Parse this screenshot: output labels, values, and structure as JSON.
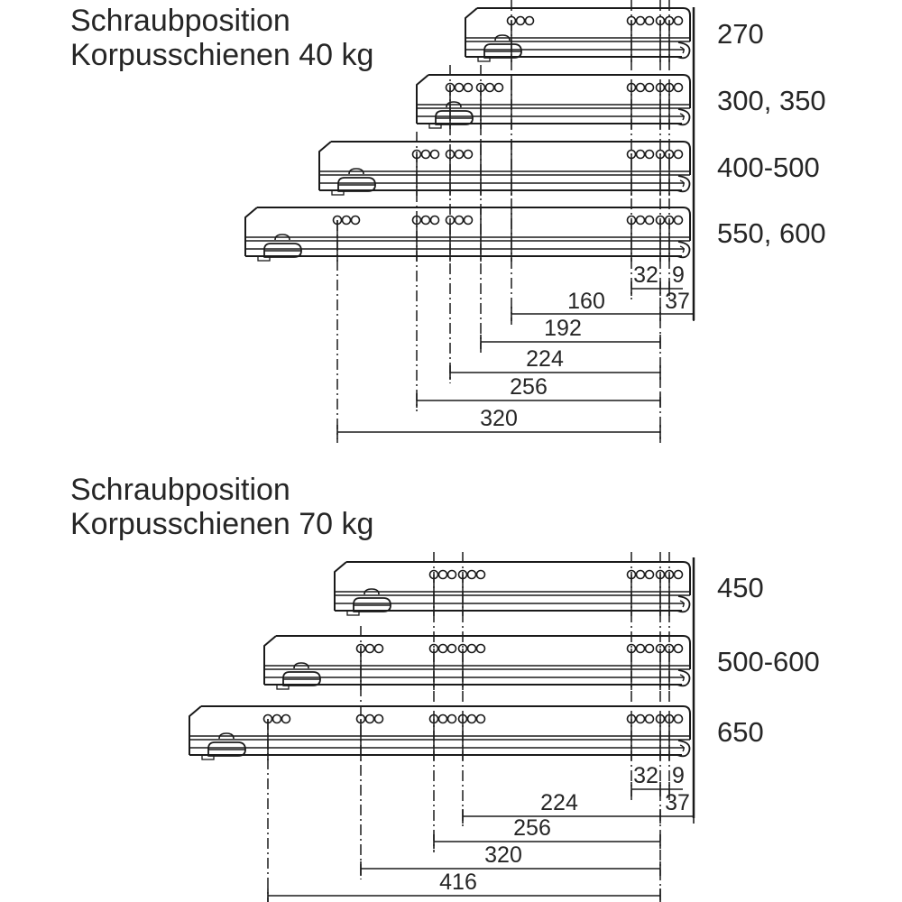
{
  "diagram_40kg": {
    "title_line1": "Schraubposition",
    "title_line2": "Korpusschienen 40 kg",
    "rail_labels": [
      "270",
      "300, 350",
      "400-500",
      "550, 600"
    ],
    "dims": {
      "d32": "32",
      "d9": "9",
      "d160": "160",
      "d37": "37",
      "d192": "192",
      "d224": "224",
      "d256": "256",
      "d320": "320"
    }
  },
  "diagram_70kg": {
    "title_line1": "Schraubposition",
    "title_line2": "Korpusschienen 70 kg",
    "rail_labels": [
      "450",
      "500-600",
      "650"
    ],
    "dims": {
      "d32": "32",
      "d9": "9",
      "d224": "224",
      "d37": "37",
      "d256": "256",
      "d320": "320",
      "d416": "416"
    }
  }
}
